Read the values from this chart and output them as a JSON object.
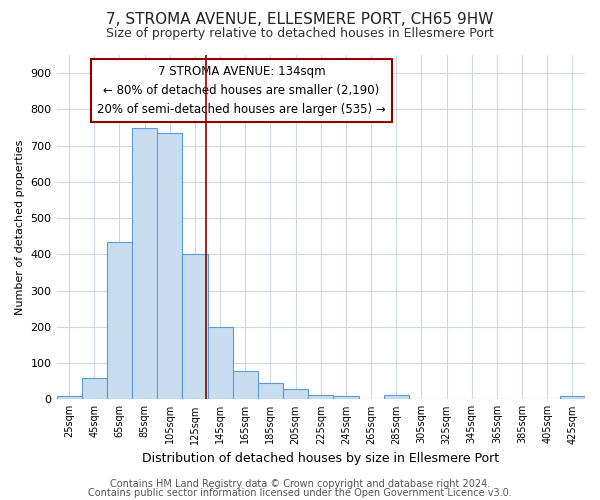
{
  "title": "7, STROMA AVENUE, ELLESMERE PORT, CH65 9HW",
  "subtitle": "Size of property relative to detached houses in Ellesmere Port",
  "xlabel": "Distribution of detached houses by size in Ellesmere Port",
  "ylabel": "Number of detached properties",
  "bar_left_edges": [
    15,
    35,
    55,
    75,
    95,
    115,
    135,
    155,
    175,
    195,
    215,
    235,
    255,
    275,
    295,
    315,
    335,
    355,
    375,
    395,
    415
  ],
  "bar_heights": [
    10,
    60,
    435,
    748,
    735,
    400,
    200,
    78,
    45,
    28,
    12,
    10,
    0,
    12,
    0,
    0,
    0,
    0,
    0,
    0,
    8
  ],
  "bin_width": 20,
  "bar_color": "#c9ddf0",
  "bar_edge_color": "#5b9bd5",
  "tick_labels": [
    "25sqm",
    "45sqm",
    "65sqm",
    "85sqm",
    "105sqm",
    "125sqm",
    "145sqm",
    "165sqm",
    "185sqm",
    "205sqm",
    "225sqm",
    "245sqm",
    "265sqm",
    "285sqm",
    "305sqm",
    "325sqm",
    "345sqm",
    "365sqm",
    "385sqm",
    "405sqm",
    "425sqm"
  ],
  "tick_positions": [
    25,
    45,
    65,
    85,
    105,
    125,
    145,
    165,
    185,
    205,
    225,
    245,
    265,
    285,
    305,
    325,
    345,
    365,
    385,
    405,
    425
  ],
  "vline_x": 134,
  "vline_color": "#8b0000",
  "ylim": [
    0,
    950
  ],
  "yticks": [
    0,
    100,
    200,
    300,
    400,
    500,
    600,
    700,
    800,
    900
  ],
  "annotation_text": "7 STROMA AVENUE: 134sqm\n← 80% of detached houses are smaller (2,190)\n20% of semi-detached houses are larger (535) →",
  "footer_line1": "Contains HM Land Registry data © Crown copyright and database right 2024.",
  "footer_line2": "Contains public sector information licensed under the Open Government Licence v3.0.",
  "bg_color": "#ffffff",
  "plot_bg_color": "#ffffff",
  "grid_color": "#d0d8e8",
  "title_fontsize": 11,
  "subtitle_fontsize": 9,
  "footer_fontsize": 7
}
